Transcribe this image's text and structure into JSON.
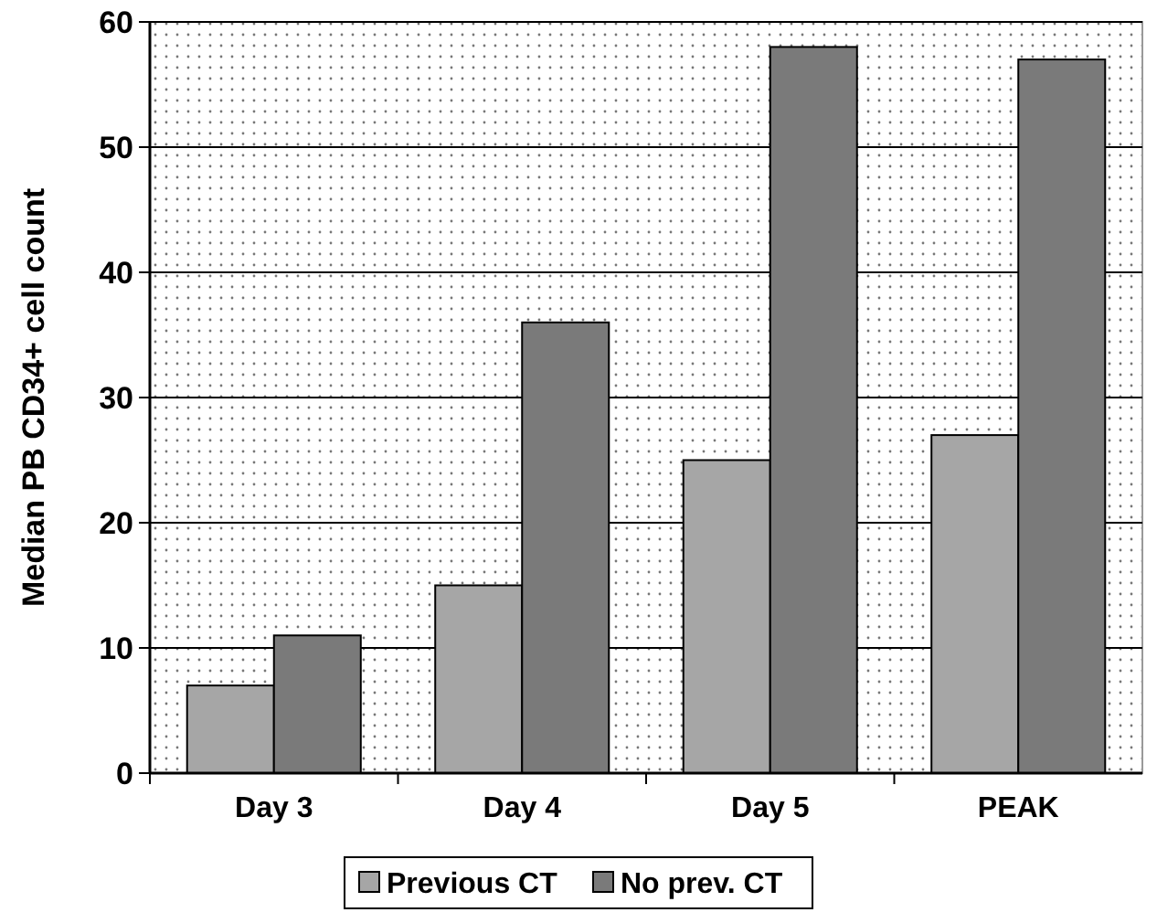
{
  "chart_data": {
    "type": "bar",
    "ylabel": "Median PB CD34+ cell count",
    "categories": [
      "Day 3",
      "Day 4",
      "Day 5",
      "PEAK"
    ],
    "series": [
      {
        "name": "Previous CT",
        "color": "#a6a6a6",
        "values": [
          7,
          15,
          25,
          27
        ]
      },
      {
        "name": "No prev. CT",
        "color": "#7a7a7a",
        "values": [
          11,
          36,
          58,
          57
        ]
      }
    ],
    "ylim": [
      0,
      60
    ],
    "yticks": [
      0,
      10,
      20,
      30,
      40,
      50,
      60
    ],
    "grid": "y",
    "legend": "bottom"
  }
}
